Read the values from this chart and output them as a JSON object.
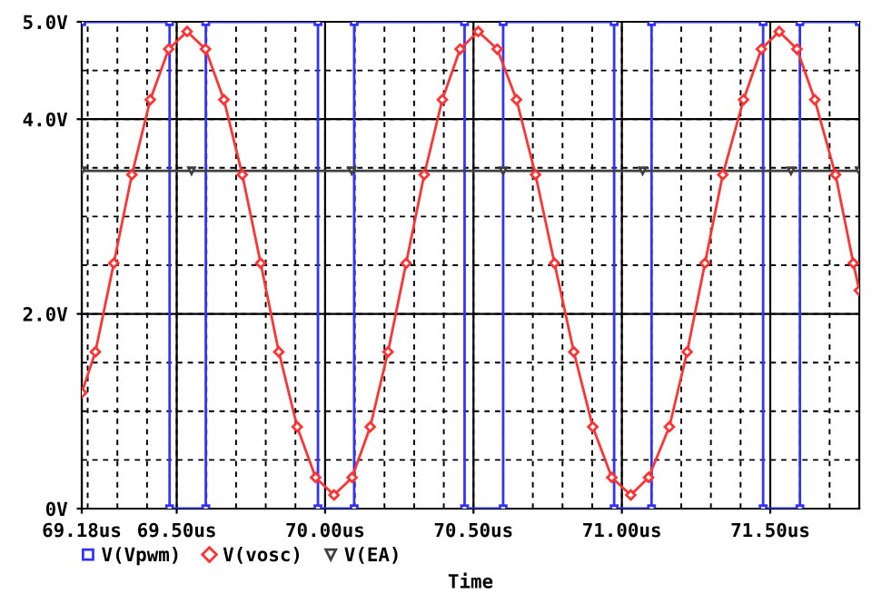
{
  "chart_data": {
    "type": "line",
    "xlabel": "Time",
    "xlim": [
      69.18,
      71.8
    ],
    "ylim": [
      0,
      5.0
    ],
    "xticks": [
      {
        "value": 69.18,
        "label": "69.18us"
      },
      {
        "value": 69.5,
        "label": "69.50us"
      },
      {
        "value": 70.0,
        "label": "70.00us"
      },
      {
        "value": 70.5,
        "label": "70.50us"
      },
      {
        "value": 71.0,
        "label": "71.00us"
      },
      {
        "value": 71.5,
        "label": "71.50us"
      }
    ],
    "yticks": [
      {
        "value": 0,
        "label": "0V"
      },
      {
        "value": 2.0,
        "label": "2.0V"
      },
      {
        "value": 4.0,
        "label": "4.0V"
      },
      {
        "value": 5.0,
        "label": "5.0V"
      }
    ],
    "grid": true,
    "legend": "bottom",
    "series": [
      {
        "name": "V(Vpwm)",
        "color": "#3333ff",
        "marker": "square",
        "x": [
          69.18,
          69.476,
          69.476,
          69.598,
          69.598,
          69.976,
          69.976,
          70.098,
          70.098,
          70.47,
          70.47,
          70.6,
          70.6,
          70.974,
          70.974,
          71.1,
          71.1,
          71.476,
          71.476,
          71.6,
          71.6,
          71.8
        ],
        "values": [
          5,
          5,
          0,
          0,
          5,
          5,
          0,
          0,
          5,
          5,
          0,
          0,
          5,
          5,
          0,
          0,
          5,
          5,
          0,
          0,
          5,
          5
        ]
      },
      {
        "name": "V(vosc)",
        "color": "#ff3333",
        "marker": "diamond",
        "x": [
          69.18,
          69.226,
          69.288,
          69.349,
          69.411,
          69.473,
          69.535,
          69.597,
          69.659,
          69.721,
          69.783,
          69.844,
          69.906,
          69.968,
          70.03,
          70.091,
          70.152,
          70.212,
          70.273,
          70.334,
          70.395,
          70.455,
          70.516,
          70.58,
          70.645,
          70.709,
          70.773,
          70.838,
          70.902,
          70.966,
          71.03,
          71.09,
          71.16,
          71.22,
          71.28,
          71.34,
          71.41,
          71.47,
          71.53,
          71.59,
          71.65,
          71.72,
          71.78,
          71.8
        ],
        "values": [
          1.19,
          1.61,
          2.52,
          3.43,
          4.2,
          4.72,
          4.9,
          4.72,
          4.2,
          3.43,
          2.52,
          1.61,
          0.84,
          0.32,
          0.14,
          0.32,
          0.84,
          1.61,
          2.52,
          3.43,
          4.2,
          4.72,
          4.9,
          4.72,
          4.2,
          3.43,
          2.52,
          1.61,
          0.84,
          0.32,
          0.14,
          0.32,
          0.84,
          1.61,
          2.52,
          3.43,
          4.2,
          4.72,
          4.9,
          4.72,
          4.2,
          3.43,
          2.52,
          2.24
        ]
      },
      {
        "name": "V(EA)",
        "color": "#404040",
        "marker": "triangle",
        "x": [
          69.18,
          69.55,
          70.09,
          70.6,
          71.07,
          71.57,
          71.8
        ],
        "values": [
          3.47,
          3.47,
          3.47,
          3.47,
          3.47,
          3.47,
          3.47
        ]
      }
    ]
  }
}
